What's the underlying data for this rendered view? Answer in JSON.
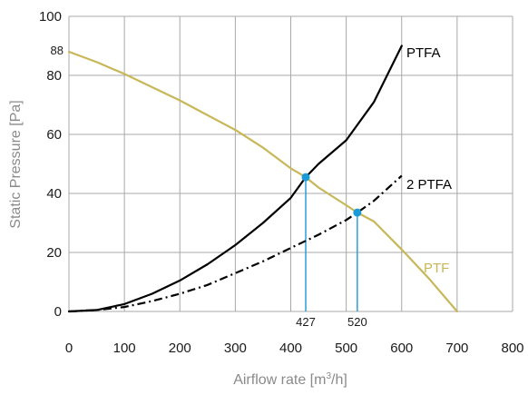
{
  "chart_data": {
    "type": "line",
    "title": "",
    "xlabel": "Airflow rate [m³/h]",
    "xlabel_parts": {
      "main": "Airflow rate [m",
      "sup": "3",
      "tail": "/h]"
    },
    "ylabel": "Static Pressure [Pa]",
    "xlim": [
      0,
      800
    ],
    "ylim": [
      0,
      100
    ],
    "xticks": [
      0,
      100,
      200,
      300,
      400,
      500,
      600,
      700,
      800
    ],
    "yticks": [
      0,
      20,
      40,
      60,
      80,
      100
    ],
    "grid": true,
    "y_annotation": {
      "value": 88,
      "label": "88"
    },
    "series": [
      {
        "name": "PTFA",
        "style": "solid",
        "color": "#000000",
        "x": [
          0,
          50,
          100,
          150,
          200,
          250,
          300,
          350,
          400,
          427,
          450,
          500,
          550,
          600
        ],
        "y": [
          0,
          0.5,
          2.5,
          6,
          10.5,
          16,
          22.5,
          30,
          38.5,
          45.5,
          50,
          58,
          71,
          90
        ]
      },
      {
        "name": "2 PTFA",
        "style": "dashdot",
        "color": "#000000",
        "x": [
          0,
          50,
          100,
          150,
          200,
          250,
          300,
          350,
          400,
          450,
          500,
          520,
          550,
          600
        ],
        "y": [
          0,
          0.5,
          1.5,
          3.5,
          6,
          9,
          13,
          17,
          21.5,
          26,
          31,
          33.5,
          37.5,
          46
        ]
      },
      {
        "name": "PTF",
        "style": "solid",
        "color": "#c8b758",
        "x": [
          0,
          50,
          100,
          150,
          200,
          250,
          300,
          350,
          400,
          427,
          450,
          500,
          520,
          550,
          600,
          650,
          700
        ],
        "y": [
          88,
          84.5,
          80.5,
          76,
          71.5,
          66.5,
          61.5,
          55.5,
          48.5,
          45.5,
          42,
          36,
          33.5,
          30.5,
          21,
          11,
          0
        ]
      }
    ],
    "operating_points": [
      {
        "x": 427,
        "y": 45.5,
        "label": "427",
        "color": "#1a9ad6"
      },
      {
        "x": 520,
        "y": 33.5,
        "label": "520",
        "color": "#1a9ad6"
      }
    ],
    "colors": {
      "grid": "#a8a8a8",
      "marker": "#1a9ad6",
      "ptf": "#c8b758"
    }
  }
}
